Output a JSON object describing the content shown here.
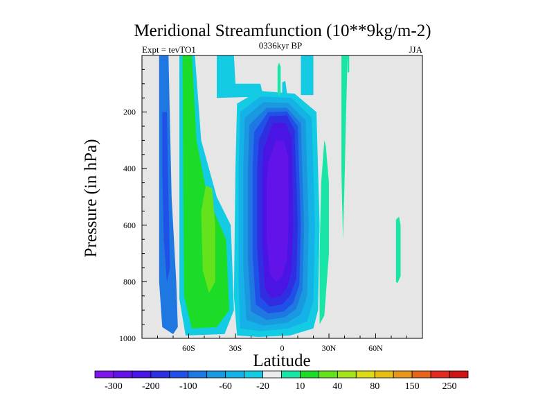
{
  "chart_data": {
    "type": "contour",
    "title": "Meridional Streamfunction (10**9kg/m-2)",
    "left_label": "Expt = tevTO1",
    "center_label": "0336kyr BP",
    "right_label": "JJA",
    "xlabel": "Latitude",
    "ylabel": "Pressure (in hPa)",
    "xlim": [
      -90,
      90
    ],
    "ylim": [
      1000,
      0
    ],
    "x_ticks": [
      {
        "value": -60,
        "label": "60S"
      },
      {
        "value": -30,
        "label": "30S"
      },
      {
        "value": 0,
        "label": "0"
      },
      {
        "value": 30,
        "label": "30N"
      },
      {
        "value": 60,
        "label": "60N"
      }
    ],
    "y_ticks": [
      {
        "value": 200,
        "label": "200"
      },
      {
        "value": 400,
        "label": "400"
      },
      {
        "value": 600,
        "label": "600"
      },
      {
        "value": 800,
        "label": "800"
      },
      {
        "value": 1000,
        "label": "1000"
      }
    ],
    "background_color": "#e6e6e6",
    "colorbar": {
      "colors": [
        "#7e16ec",
        "#6214e8",
        "#4a14e4",
        "#2f2ee0",
        "#2050e8",
        "#1f78e2",
        "#1a98e0",
        "#14b2e6",
        "#13cbe2",
        "#ebebeb",
        "#19e6a6",
        "#1ddc28",
        "#64e21c",
        "#a6e219",
        "#dcdc14",
        "#e6be14",
        "#e6961a",
        "#e6641c",
        "#e02a20",
        "#cc1414"
      ],
      "labels": [
        {
          "after_box": 1,
          "text": "-300"
        },
        {
          "after_box": 3,
          "text": "-200"
        },
        {
          "after_box": 5,
          "text": "-100"
        },
        {
          "after_box": 7,
          "text": "-60"
        },
        {
          "after_box": 9,
          "text": "-20"
        },
        {
          "after_box": 11,
          "text": "10"
        },
        {
          "after_box": 13,
          "text": "40"
        },
        {
          "after_box": 15,
          "text": "80"
        },
        {
          "after_box": 17,
          "text": "150"
        },
        {
          "after_box": 19,
          "text": "250"
        }
      ]
    },
    "regions": [
      {
        "name": "sh-outer-cell-outer",
        "color": "#1f78e2",
        "points": [
          [
            -79,
            0
          ],
          [
            -73,
            0
          ],
          [
            -71,
            500
          ],
          [
            -68,
            800
          ],
          [
            -67,
            960
          ],
          [
            -70,
            985
          ],
          [
            -77,
            960
          ],
          [
            -79,
            800
          ]
        ]
      },
      {
        "name": "sh-outer-cell-inner",
        "color": "#2050e8",
        "points": [
          [
            -77,
            200
          ],
          [
            -74,
            200
          ],
          [
            -73,
            500
          ],
          [
            -72,
            750
          ],
          [
            -74,
            800
          ],
          [
            -76,
            650
          ],
          [
            -77,
            400
          ]
        ]
      },
      {
        "name": "sh-cyan-band",
        "color": "#13cbe2",
        "points": [
          [
            -66,
            0
          ],
          [
            -56,
            0
          ],
          [
            -52,
            300
          ],
          [
            -42,
            500
          ],
          [
            -33,
            600
          ],
          [
            -31,
            900
          ],
          [
            -37,
            985
          ],
          [
            -62,
            990
          ],
          [
            -66,
            860
          ]
        ]
      },
      {
        "name": "sh-green-band",
        "color": "#1ddc28",
        "points": [
          [
            -64,
            0
          ],
          [
            -58,
            0
          ],
          [
            -55,
            300
          ],
          [
            -48,
            500
          ],
          [
            -36,
            650
          ],
          [
            -34,
            900
          ],
          [
            -42,
            960
          ],
          [
            -58,
            965
          ],
          [
            -63,
            850
          ]
        ]
      },
      {
        "name": "sh-green-core",
        "color": "#64e21c",
        "points": [
          [
            -49,
            460
          ],
          [
            -45,
            470
          ],
          [
            -43,
            600
          ],
          [
            -43,
            800
          ],
          [
            -47,
            840
          ],
          [
            -51,
            760
          ],
          [
            -52,
            550
          ]
        ]
      },
      {
        "name": "upper-cyan-cap",
        "color": "#13cbe2",
        "points": [
          [
            -42,
            0
          ],
          [
            -31,
            0
          ],
          [
            -30,
            100
          ],
          [
            -14,
            100
          ],
          [
            -12,
            145
          ],
          [
            -42,
            150
          ]
        ]
      },
      {
        "name": "upper-cyan-cap-right",
        "color": "#13cbe2",
        "points": [
          [
            12,
            0
          ],
          [
            20,
            0
          ],
          [
            20,
            140
          ],
          [
            12,
            140
          ]
        ]
      },
      {
        "name": "hadley-1",
        "color": "#13cbe2",
        "points": [
          [
            -29,
            170
          ],
          [
            -15,
            125
          ],
          [
            8,
            135
          ],
          [
            22,
            200
          ],
          [
            24,
            600
          ],
          [
            23,
            900
          ],
          [
            20,
            965
          ],
          [
            5,
            990
          ],
          [
            -15,
            995
          ],
          [
            -29,
            990
          ],
          [
            -31,
            850
          ],
          [
            -30,
            400
          ]
        ]
      },
      {
        "name": "hadley-2",
        "color": "#14b2e6",
        "points": [
          [
            -27,
            200
          ],
          [
            -14,
            145
          ],
          [
            6,
            150
          ],
          [
            19,
            220
          ],
          [
            21,
            600
          ],
          [
            20,
            870
          ],
          [
            16,
            940
          ],
          [
            4,
            965
          ],
          [
            -14,
            975
          ],
          [
            -27,
            965
          ],
          [
            -28,
            800
          ],
          [
            -28,
            400
          ]
        ]
      },
      {
        "name": "hadley-3",
        "color": "#1a98e0",
        "points": [
          [
            -24,
            220
          ],
          [
            -12,
            165
          ],
          [
            4,
            168
          ],
          [
            15,
            230
          ],
          [
            17,
            600
          ],
          [
            16,
            850
          ],
          [
            12,
            915
          ],
          [
            3,
            945
          ],
          [
            -12,
            955
          ],
          [
            -23,
            935
          ],
          [
            -25,
            750
          ],
          [
            -25,
            400
          ]
        ]
      },
      {
        "name": "hadley-4",
        "color": "#1f78e2",
        "points": [
          [
            -21,
            245
          ],
          [
            -10,
            185
          ],
          [
            3,
            185
          ],
          [
            12,
            240
          ],
          [
            14,
            600
          ],
          [
            13,
            830
          ],
          [
            9,
            895
          ],
          [
            2,
            925
          ],
          [
            -10,
            935
          ],
          [
            -20,
            905
          ],
          [
            -22,
            720
          ],
          [
            -22,
            400
          ]
        ]
      },
      {
        "name": "hadley-5",
        "color": "#2050e8",
        "points": [
          [
            -18,
            270
          ],
          [
            -9,
            200
          ],
          [
            3,
            198
          ],
          [
            10,
            250
          ],
          [
            12,
            600
          ],
          [
            11,
            810
          ],
          [
            7,
            875
          ],
          [
            1,
            905
          ],
          [
            -9,
            912
          ],
          [
            -17,
            880
          ],
          [
            -19,
            700
          ],
          [
            -19,
            400
          ]
        ]
      },
      {
        "name": "hadley-6",
        "color": "#2f2ee0",
        "points": [
          [
            -15,
            300
          ],
          [
            -8,
            215
          ],
          [
            3,
            212
          ],
          [
            8,
            265
          ],
          [
            10,
            600
          ],
          [
            9,
            790
          ],
          [
            5,
            850
          ],
          [
            0,
            880
          ],
          [
            -8,
            888
          ],
          [
            -14,
            855
          ],
          [
            -16,
            680
          ],
          [
            -16,
            400
          ]
        ]
      },
      {
        "name": "hadley-7",
        "color": "#4a14e4",
        "points": [
          [
            -12,
            330
          ],
          [
            -6,
            240
          ],
          [
            2,
            238
          ],
          [
            6,
            290
          ],
          [
            7,
            600
          ],
          [
            6,
            760
          ],
          [
            3,
            820
          ],
          [
            -1,
            850
          ],
          [
            -7,
            858
          ],
          [
            -11,
            825
          ],
          [
            -13,
            660
          ],
          [
            -13,
            420
          ]
        ]
      },
      {
        "name": "hadley-8",
        "color": "#6214e8",
        "points": [
          [
            -9,
            380
          ],
          [
            -4,
            300
          ],
          [
            1,
            300
          ],
          [
            4,
            360
          ],
          [
            4,
            620
          ],
          [
            3,
            720
          ],
          [
            0,
            780
          ],
          [
            -4,
            800
          ],
          [
            -8,
            770
          ],
          [
            -10,
            640
          ],
          [
            -10,
            460
          ]
        ]
      },
      {
        "name": "tropical-strip",
        "color": "#19e6a6",
        "points": [
          [
            -3,
            40
          ],
          [
            -2,
            25
          ],
          [
            -1,
            40
          ],
          [
            -1,
            130
          ],
          [
            -2,
            145
          ],
          [
            -3,
            130
          ]
        ]
      },
      {
        "name": "tropical-cyan-strip",
        "color": "#13cbe2",
        "points": [
          [
            0,
            95
          ],
          [
            2,
            90
          ],
          [
            3,
            130
          ],
          [
            2,
            145
          ],
          [
            0,
            140
          ]
        ]
      },
      {
        "name": "ferrel-wedge",
        "color": "#19e6a6",
        "points": [
          [
            24,
            950
          ],
          [
            27,
            920
          ],
          [
            30,
            700
          ],
          [
            30,
            450
          ],
          [
            28,
            320
          ],
          [
            27,
            300
          ],
          [
            25,
            450
          ],
          [
            24,
            700
          ]
        ]
      },
      {
        "name": "nh-narrow-strip",
        "color": "#19e6a6",
        "points": [
          [
            38,
            0
          ],
          [
            42,
            0
          ],
          [
            41,
            200
          ],
          [
            40,
            450
          ],
          [
            39,
            650
          ],
          [
            38,
            410
          ],
          [
            38,
            150
          ]
        ]
      },
      {
        "name": "nh-narrow-strip-2",
        "color": "#19e6a6",
        "points": [
          [
            42,
            0
          ],
          [
            43,
            0
          ],
          [
            43,
            60
          ],
          [
            42,
            60
          ]
        ]
      },
      {
        "name": "nh-polar-strip",
        "color": "#19e6a6",
        "points": [
          [
            73,
            580
          ],
          [
            75,
            570
          ],
          [
            76,
            600
          ],
          [
            76,
            780
          ],
          [
            74,
            805
          ],
          [
            73,
            800
          ]
        ]
      }
    ]
  }
}
